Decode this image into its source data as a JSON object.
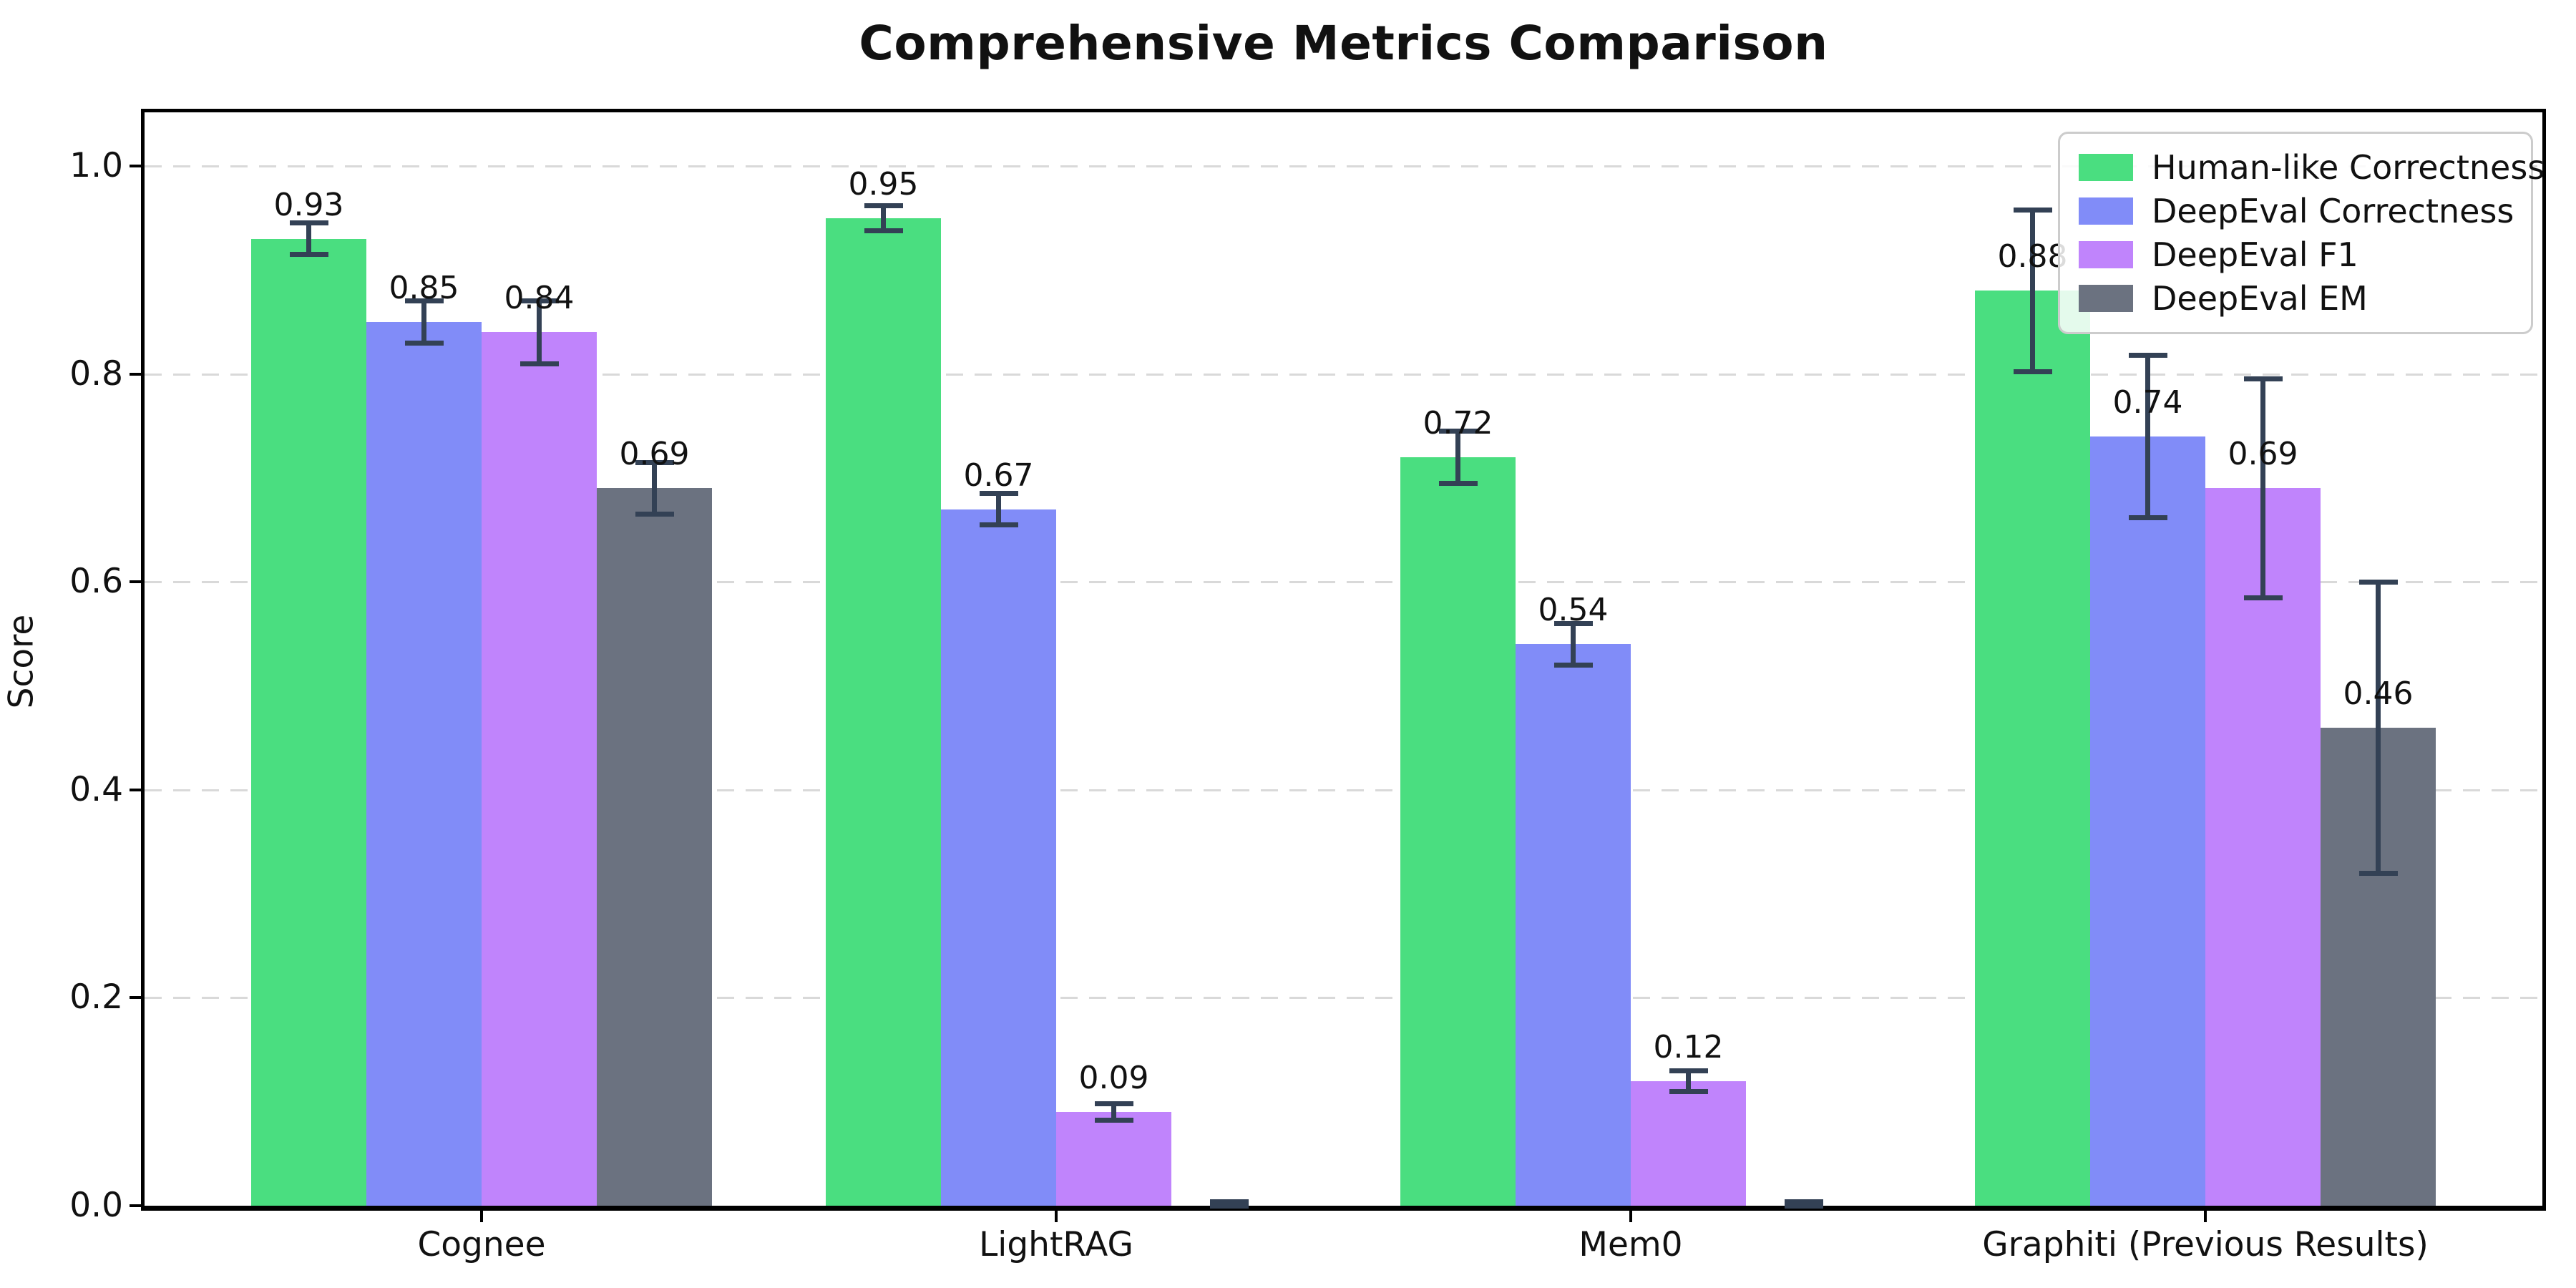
{
  "title": "Comprehensive Metrics Comparison",
  "chart_data": {
    "type": "bar",
    "title": "Comprehensive Metrics Comparison",
    "xlabel": "",
    "ylabel": "Score",
    "categories": [
      "Cognee",
      "LightRAG",
      "Mem0",
      "Graphiti (Previous Results)"
    ],
    "yticks": [
      "0.0",
      "0.2",
      "0.4",
      "0.6",
      "0.8",
      "1.0"
    ],
    "ylim": [
      0,
      1.052
    ],
    "grid": "horizontal-dashed",
    "grid_color": "#d9d9d9",
    "error_bar_color": "#334155",
    "legend_position": "upper right",
    "series": [
      {
        "name": "Human-like Correctness",
        "color": "#4ade80",
        "values": [
          0.93,
          0.95,
          0.72,
          0.88
        ],
        "errors": [
          0.015,
          0.012,
          0.025,
          0.078
        ],
        "labels": [
          "0.93",
          "0.95",
          "0.72",
          "0.88"
        ]
      },
      {
        "name": "DeepEval Correctness",
        "color": "#818cf8",
        "values": [
          0.85,
          0.67,
          0.54,
          0.74
        ],
        "errors": [
          0.02,
          0.015,
          0.02,
          0.078
        ],
        "labels": [
          "0.85",
          "0.67",
          "0.54",
          "0.74"
        ]
      },
      {
        "name": "DeepEval F1",
        "color": "#c084fc",
        "values": [
          0.84,
          0.09,
          0.12,
          0.69
        ],
        "errors": [
          0.03,
          0.008,
          0.01,
          0.105
        ],
        "labels": [
          "0.84",
          "0.09",
          "0.12",
          "0.69"
        ]
      },
      {
        "name": "DeepEval EM",
        "color": "#6b7280",
        "values": [
          0.69,
          0.0,
          0.0,
          0.46
        ],
        "errors": [
          0.025,
          0.004,
          0.004,
          0.14
        ],
        "labels": [
          "0.69",
          null,
          null,
          "0.46"
        ]
      }
    ]
  }
}
